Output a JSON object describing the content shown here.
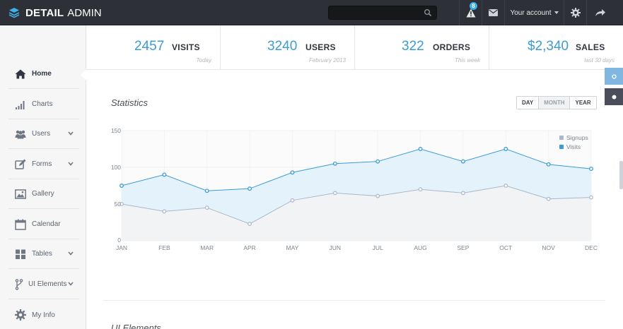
{
  "brand": {
    "bold": "DETAIL",
    "light": "ADMIN"
  },
  "topbar": {
    "search_placeholder": "",
    "notifications_count": "8",
    "account_label": "Your account"
  },
  "sidebar": {
    "items": [
      {
        "label": "Home",
        "icon": "home-icon",
        "active": true
      },
      {
        "label": "Charts",
        "icon": "bar-chart-icon"
      },
      {
        "label": "Users",
        "icon": "users-icon",
        "expandable": true
      },
      {
        "label": "Forms",
        "icon": "edit-icon",
        "expandable": true
      },
      {
        "label": "Gallery",
        "icon": "picture-icon"
      },
      {
        "label": "Calendar",
        "icon": "calendar-icon"
      },
      {
        "label": "Tables",
        "icon": "grid-icon",
        "expandable": true
      },
      {
        "label": "UI Elements",
        "icon": "fork-icon",
        "expandable": true
      },
      {
        "label": "My Info",
        "icon": "gear-icon"
      }
    ]
  },
  "stats": [
    {
      "value": "2457",
      "label": "VISITS",
      "sub": "Today"
    },
    {
      "value": "3240",
      "label": "USERS",
      "sub": "February 2013"
    },
    {
      "value": "322",
      "label": "ORDERS",
      "sub": "This week"
    },
    {
      "value": "$2,340",
      "label": "SALES",
      "sub": "last 30 days"
    }
  ],
  "statistics": {
    "title": "Statistics",
    "range_buttons": [
      "DAY",
      "MONTH",
      "YEAR"
    ],
    "selected_range": "MONTH"
  },
  "section2_title": "UI Elements",
  "colors": {
    "accent": "#3d9bd6",
    "topbar": "#2d3037",
    "visits": "#3a9bd9",
    "signups": "#a9b8c8"
  },
  "chart_data": {
    "type": "area",
    "categories": [
      "JAN",
      "FEB",
      "MAR",
      "APR",
      "MAY",
      "JUN",
      "JUL",
      "AUG",
      "SEP",
      "OCT",
      "NOV",
      "DEC"
    ],
    "series": [
      {
        "name": "Signups",
        "values": [
          50,
          40,
          45,
          23,
          55,
          65,
          61,
          70,
          65,
          75,
          57,
          59
        ]
      },
      {
        "name": "Visits",
        "values": [
          75,
          90,
          68,
          71,
          93,
          105,
          108,
          125,
          108,
          125,
          104,
          98
        ]
      }
    ],
    "ylim": [
      0,
      150
    ],
    "yticks": [
      "0",
      "50",
      "100",
      "150"
    ],
    "legend": "top-right",
    "grid": true
  }
}
